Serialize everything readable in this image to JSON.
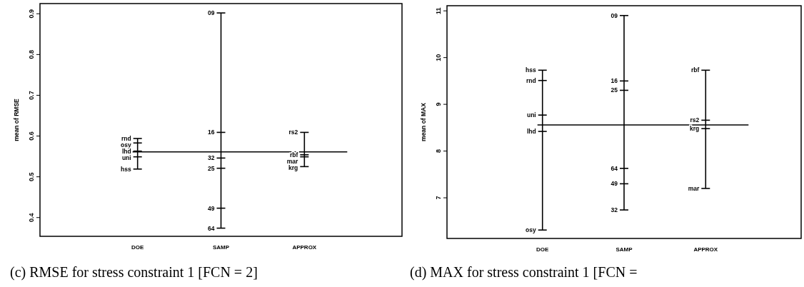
{
  "chart_data": [
    {
      "type": "line",
      "title": "(c) RMSE for stress constraint 1 [FCN = 2]",
      "ylabel": "mean of RMSE",
      "categories": [
        "DOE",
        "SAMP",
        "APPROX"
      ],
      "ylim": [
        0.354,
        0.925
      ],
      "yticks": [
        0.4,
        0.5,
        0.6,
        0.7,
        0.8,
        0.9
      ],
      "grid": false,
      "ref_lines": [
        {
          "axis": "y",
          "value": 0.561
        }
      ],
      "series": [
        {
          "color": "#000000",
          "x": [
            "DOE",
            "DOE",
            "DOE",
            "DOE",
            "DOE"
          ],
          "values": [
            0.594,
            0.583,
            0.563,
            0.549,
            0.519
          ]
        },
        {
          "color": "#000000",
          "x": [
            "SAMP",
            "SAMP",
            "SAMP",
            "SAMP",
            "SAMP",
            "SAMP"
          ],
          "values": [
            0.902,
            0.609,
            0.546,
            0.521,
            0.423,
            0.374
          ]
        },
        {
          "color": "#000000",
          "x": [
            "APPROX",
            "APPROX",
            "APPROX",
            "APPROX"
          ],
          "values": [
            0.609,
            0.554,
            0.549,
            0.525
          ]
        }
      ],
      "annotations": [
        {
          "text": "rnd",
          "x": "DOE",
          "y": 0.594
        },
        {
          "text": "osy",
          "x": "DOE",
          "y": 0.583
        },
        {
          "text": "lhd",
          "x": "DOE",
          "y": 0.563
        },
        {
          "text": "uni",
          "x": "DOE",
          "y": 0.549
        },
        {
          "text": "hss",
          "x": "DOE",
          "y": 0.519
        },
        {
          "text": "09",
          "x": "SAMP",
          "y": 0.902
        },
        {
          "text": "16",
          "x": "SAMP",
          "y": 0.609
        },
        {
          "text": "32",
          "x": "SAMP",
          "y": 0.546
        },
        {
          "text": "25",
          "x": "SAMP",
          "y": 0.521
        },
        {
          "text": "49",
          "x": "SAMP",
          "y": 0.423
        },
        {
          "text": "64",
          "x": "SAMP",
          "y": 0.374
        },
        {
          "text": "rs2",
          "x": "APPROX",
          "y": 0.609
        },
        {
          "text": "rbf",
          "x": "APPROX",
          "y": 0.554
        },
        {
          "text": "mar",
          "x": "APPROX",
          "y": 0.549
        },
        {
          "text": "krg",
          "x": "APPROX",
          "y": 0.525
        }
      ]
    },
    {
      "type": "line",
      "title": "(d) MAX for stress constraint 1 [FCN =",
      "ylabel": "mean of MAX",
      "categories": [
        "DOE",
        "SAMP",
        "APPROX"
      ],
      "ylim": [
        6.13,
        11.11
      ],
      "yticks": [
        7,
        8,
        9,
        10,
        11
      ],
      "grid": false,
      "ref_lines": [
        {
          "axis": "y",
          "value": 8.56
        }
      ],
      "series": [
        {
          "color": "#000000",
          "x": [
            "DOE",
            "DOE",
            "DOE",
            "DOE",
            "DOE"
          ],
          "values": [
            9.73,
            9.51,
            8.77,
            8.42,
            6.31
          ]
        },
        {
          "color": "#000000",
          "x": [
            "SAMP",
            "SAMP",
            "SAMP",
            "SAMP",
            "SAMP",
            "SAMP"
          ],
          "values": [
            10.9,
            9.5,
            9.3,
            7.63,
            7.3,
            6.74
          ]
        },
        {
          "color": "#000000",
          "x": [
            "APPROX",
            "APPROX",
            "APPROX",
            "APPROX"
          ],
          "values": [
            9.73,
            8.66,
            8.48,
            7.2
          ]
        }
      ],
      "annotations": [
        {
          "text": "hss",
          "x": "DOE",
          "y": 9.73
        },
        {
          "text": "rnd",
          "x": "DOE",
          "y": 9.51
        },
        {
          "text": "uni",
          "x": "DOE",
          "y": 8.77
        },
        {
          "text": "lhd",
          "x": "DOE",
          "y": 8.42
        },
        {
          "text": "osy",
          "x": "DOE",
          "y": 6.31
        },
        {
          "text": "09",
          "x": "SAMP",
          "y": 10.9
        },
        {
          "text": "16",
          "x": "SAMP",
          "y": 9.5
        },
        {
          "text": "25",
          "x": "SAMP",
          "y": 9.3
        },
        {
          "text": "64",
          "x": "SAMP",
          "y": 7.63
        },
        {
          "text": "49",
          "x": "SAMP",
          "y": 7.3
        },
        {
          "text": "32",
          "x": "SAMP",
          "y": 6.74
        },
        {
          "text": "rbf",
          "x": "APPROX",
          "y": 9.73
        },
        {
          "text": "rs2",
          "x": "APPROX",
          "y": 8.66
        },
        {
          "text": "krg",
          "x": "APPROX",
          "y": 8.48
        },
        {
          "text": "mar",
          "x": "APPROX",
          "y": 7.2
        }
      ]
    }
  ]
}
